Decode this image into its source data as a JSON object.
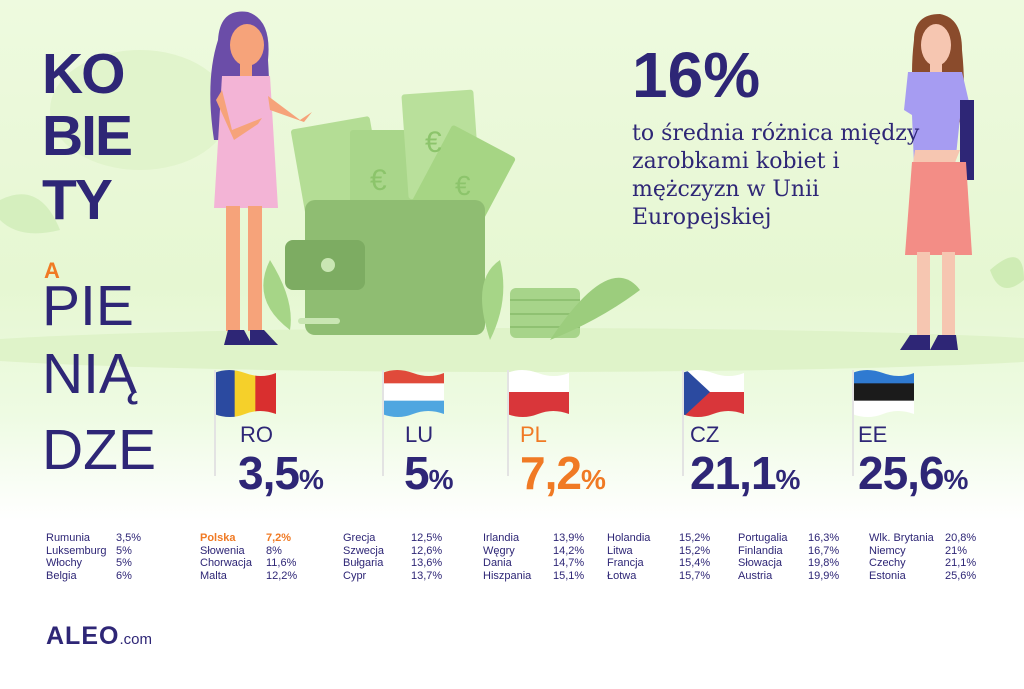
{
  "title": {
    "line1": "KO",
    "line2": "BIE",
    "line3": "TY",
    "connector": "A",
    "line4": "PIE",
    "line5": "NIĄ",
    "line6": "DZE"
  },
  "headline": {
    "value": "16%",
    "description": "to średnia różnica między zarobkami kobiet i mężczyzn w Unii Europejskiej"
  },
  "featured": [
    {
      "code": "RO",
      "value": "3,5",
      "unit": "%",
      "flag": [
        "#2b4aa0",
        "#f5d02a",
        "#d92f2f"
      ],
      "orientation": "vertical"
    },
    {
      "code": "LU",
      "value": "5",
      "unit": "%",
      "flag": [
        "#e04a3a",
        "#ffffff",
        "#4fa6e0"
      ],
      "orientation": "horizontal"
    },
    {
      "code": "PL",
      "value": "7,2",
      "unit": "%",
      "flag": [
        "#ffffff",
        "#d9363a"
      ],
      "orientation": "horizontal",
      "highlight": true
    },
    {
      "code": "CZ",
      "value": "21,1",
      "unit": "%",
      "flag": [
        "#ffffff",
        "#d9363a",
        "#2b4aa0"
      ],
      "orientation": "czech"
    },
    {
      "code": "EE",
      "value": "25,6",
      "unit": "%",
      "flag": [
        "#2f7ad1",
        "#1b1b1b",
        "#ffffff"
      ],
      "orientation": "horizontal"
    }
  ],
  "country_lists": [
    [
      [
        "Rumunia",
        "3,5%"
      ],
      [
        "Luksemburg",
        "5%"
      ],
      [
        "Włochy",
        "5%"
      ],
      [
        "Belgia",
        "6%"
      ]
    ],
    [
      [
        "Polska",
        "7,2%"
      ],
      [
        "Słowenia",
        "8%"
      ],
      [
        "Chorwacja",
        "11,6%"
      ],
      [
        "Malta",
        "12,2%"
      ]
    ],
    [
      [
        "Grecja",
        "12,5%"
      ],
      [
        "Szwecja",
        "12,6%"
      ],
      [
        "Bułgaria",
        "13,6%"
      ],
      [
        "Cypr",
        "13,7%"
      ]
    ],
    [
      [
        "Irlandia",
        "13,9%"
      ],
      [
        "Węgry",
        "14,2%"
      ],
      [
        "Dania",
        "14,7%"
      ],
      [
        "Hiszpania",
        "15,1%"
      ]
    ],
    [
      [
        "Holandia",
        "15,2%"
      ],
      [
        "Litwa",
        "15,2%"
      ],
      [
        "Francja",
        "15,4%"
      ],
      [
        "Łotwa",
        "15,7%"
      ]
    ],
    [
      [
        "Portugalia",
        "16,3%"
      ],
      [
        "Finlandia",
        "16,7%"
      ],
      [
        "Słowacja",
        "19,8%"
      ],
      [
        "Austria",
        "19,9%"
      ]
    ],
    [
      [
        "Wlk. Brytania",
        "20,8%"
      ],
      [
        "Niemcy",
        "21%"
      ],
      [
        "Czechy",
        "21,1%"
      ],
      [
        "Estonia",
        "25,6%"
      ]
    ]
  ],
  "highlight_country": "Polska",
  "logo": {
    "brand": "ALEO",
    "suffix": ".com"
  },
  "colors": {
    "navy": "#2e2676",
    "orange": "#f07a24",
    "green": "#8fc77a",
    "background": "#e6f7d2"
  }
}
